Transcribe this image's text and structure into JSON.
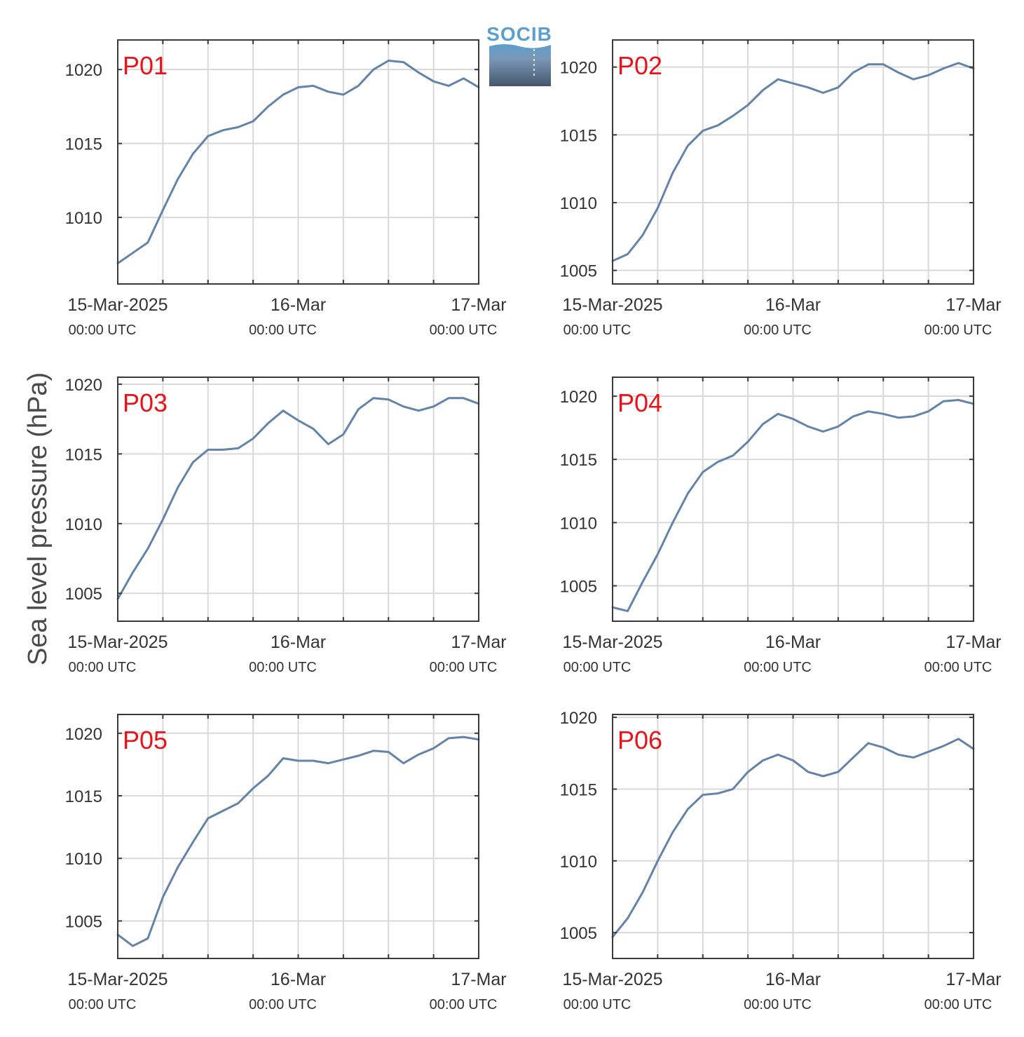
{
  "figure": {
    "ylabel": "Sea level pressure (hPa)",
    "logo_text": "SOCIB",
    "colors": {
      "line": "#6383a8",
      "panel_label": "#e8141c",
      "grid": "#d9d9d9",
      "axis": "#3a3a3a",
      "text": "#333333"
    }
  },
  "chart_data": [
    {
      "type": "line",
      "label": "P01",
      "x_ticks": [
        {
          "label": "15-Mar-2025",
          "sub": "00:00 UTC"
        },
        {
          "label": "16-Mar",
          "sub": "00:00 UTC"
        },
        {
          "label": "17-Mar",
          "sub": "00:00 UTC"
        }
      ],
      "ylim": [
        1005.5,
        1022
      ],
      "yticks": [
        1010,
        1015,
        1020
      ],
      "x": [
        0,
        2,
        4,
        6,
        8,
        10,
        12,
        14,
        16,
        18,
        20,
        22,
        24,
        26,
        28,
        30,
        32,
        34,
        36,
        38,
        40,
        42,
        44,
        46,
        48
      ],
      "values": [
        1006.9,
        1007.6,
        1008.3,
        1010.5,
        1012.6,
        1014.3,
        1015.5,
        1015.9,
        1016.1,
        1016.5,
        1017.5,
        1018.3,
        1018.8,
        1018.9,
        1018.5,
        1018.3,
        1018.9,
        1020.0,
        1020.6,
        1020.5,
        1019.8,
        1019.2,
        1018.9,
        1019.4,
        1018.8
      ],
      "grid": true
    },
    {
      "type": "line",
      "label": "P02",
      "x_ticks": [
        {
          "label": "15-Mar-2025",
          "sub": "00:00 UTC"
        },
        {
          "label": "16-Mar",
          "sub": "00:00 UTC"
        },
        {
          "label": "17-Mar",
          "sub": "00:00 UTC"
        }
      ],
      "ylim": [
        1004,
        1022
      ],
      "yticks": [
        1005,
        1010,
        1015,
        1020
      ],
      "x": [
        0,
        2,
        4,
        6,
        8,
        10,
        12,
        14,
        16,
        18,
        20,
        22,
        24,
        26,
        28,
        30,
        32,
        34,
        36,
        38,
        40,
        42,
        44,
        46,
        48
      ],
      "values": [
        1005.7,
        1006.2,
        1007.6,
        1009.6,
        1012.2,
        1014.2,
        1015.3,
        1015.7,
        1016.4,
        1017.2,
        1018.3,
        1019.1,
        1018.8,
        1018.5,
        1018.1,
        1018.5,
        1019.6,
        1020.2,
        1020.2,
        1019.6,
        1019.1,
        1019.4,
        1019.9,
        1020.3,
        1019.9
      ],
      "grid": true
    },
    {
      "type": "line",
      "label": "P03",
      "x_ticks": [
        {
          "label": "15-Mar-2025",
          "sub": "00:00 UTC"
        },
        {
          "label": "16-Mar",
          "sub": "00:00 UTC"
        },
        {
          "label": "17-Mar",
          "sub": "00:00 UTC"
        }
      ],
      "ylim": [
        1003,
        1020.5
      ],
      "yticks": [
        1005,
        1010,
        1015,
        1020
      ],
      "x": [
        0,
        2,
        4,
        6,
        8,
        10,
        12,
        14,
        16,
        18,
        20,
        22,
        24,
        26,
        28,
        30,
        32,
        34,
        36,
        38,
        40,
        42,
        44,
        46,
        48
      ],
      "values": [
        1004.6,
        1006.5,
        1008.2,
        1010.3,
        1012.6,
        1014.4,
        1015.3,
        1015.3,
        1015.4,
        1016.1,
        1017.2,
        1018.1,
        1017.4,
        1016.8,
        1015.7,
        1016.4,
        1018.2,
        1019.0,
        1018.9,
        1018.4,
        1018.1,
        1018.4,
        1019.0,
        1019.0,
        1018.6
      ],
      "grid": true
    },
    {
      "type": "line",
      "label": "P04",
      "x_ticks": [
        {
          "label": "15-Mar-2025",
          "sub": "00:00 UTC"
        },
        {
          "label": "16-Mar",
          "sub": "00:00 UTC"
        },
        {
          "label": "17-Mar",
          "sub": "00:00 UTC"
        }
      ],
      "ylim": [
        1002.2,
        1021.5
      ],
      "yticks": [
        1005,
        1010,
        1015,
        1020
      ],
      "x": [
        0,
        2,
        4,
        6,
        8,
        10,
        12,
        14,
        16,
        18,
        20,
        22,
        24,
        26,
        28,
        30,
        32,
        34,
        36,
        38,
        40,
        42,
        44,
        46,
        48
      ],
      "values": [
        1003.3,
        1003.0,
        1005.3,
        1007.5,
        1010.0,
        1012.3,
        1014.0,
        1014.8,
        1015.3,
        1016.4,
        1017.8,
        1018.6,
        1018.2,
        1017.6,
        1017.2,
        1017.6,
        1018.4,
        1018.8,
        1018.6,
        1018.3,
        1018.4,
        1018.8,
        1019.6,
        1019.7,
        1019.4
      ],
      "grid": true
    },
    {
      "type": "line",
      "label": "P05",
      "x_ticks": [
        {
          "label": "15-Mar-2025",
          "sub": "00:00 UTC"
        },
        {
          "label": "16-Mar",
          "sub": "00:00 UTC"
        },
        {
          "label": "17-Mar",
          "sub": "00:00 UTC"
        }
      ],
      "ylim": [
        1002,
        1021.5
      ],
      "yticks": [
        1005,
        1010,
        1015,
        1020
      ],
      "x": [
        0,
        2,
        4,
        6,
        8,
        10,
        12,
        14,
        16,
        18,
        20,
        22,
        24,
        26,
        28,
        30,
        32,
        34,
        36,
        38,
        40,
        42,
        44,
        46,
        48
      ],
      "values": [
        1003.9,
        1003.0,
        1003.6,
        1006.9,
        1009.3,
        1011.3,
        1013.2,
        1013.8,
        1014.4,
        1015.6,
        1016.6,
        1018.0,
        1017.8,
        1017.8,
        1017.6,
        1017.9,
        1018.2,
        1018.6,
        1018.5,
        1017.6,
        1018.3,
        1018.8,
        1019.6,
        1019.7,
        1019.5
      ],
      "grid": true
    },
    {
      "type": "line",
      "label": "P06",
      "x_ticks": [
        {
          "label": "15-Mar-2025",
          "sub": "00:00 UTC"
        },
        {
          "label": "16-Mar",
          "sub": "00:00 UTC"
        },
        {
          "label": "17-Mar",
          "sub": "00:00 UTC"
        }
      ],
      "ylim": [
        1003.2,
        1020.2
      ],
      "yticks": [
        1005,
        1010,
        1015,
        1020
      ],
      "x": [
        0,
        2,
        4,
        6,
        8,
        10,
        12,
        14,
        16,
        18,
        20,
        22,
        24,
        26,
        28,
        30,
        32,
        34,
        36,
        38,
        40,
        42,
        44,
        46,
        48
      ],
      "values": [
        1004.7,
        1006.0,
        1007.8,
        1010.0,
        1012.0,
        1013.6,
        1014.6,
        1014.7,
        1015.0,
        1016.2,
        1017.0,
        1017.4,
        1017.0,
        1016.2,
        1015.9,
        1016.2,
        1017.2,
        1018.2,
        1017.9,
        1017.4,
        1017.2,
        1017.6,
        1018.0,
        1018.5,
        1017.8
      ],
      "grid": true
    }
  ]
}
